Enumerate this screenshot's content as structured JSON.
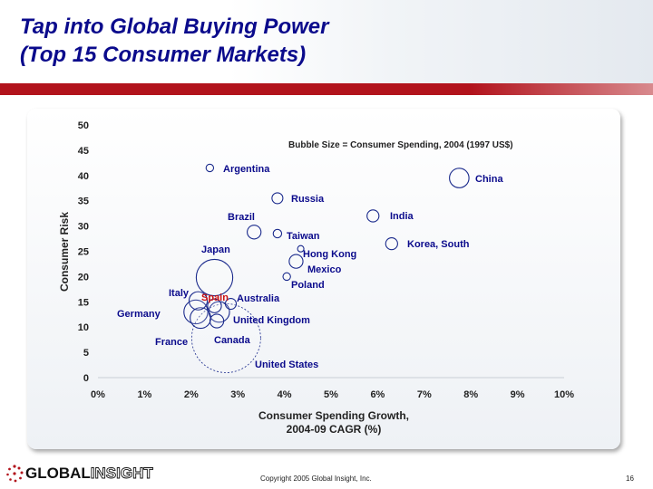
{
  "title_lines": [
    "Tap into Global Buying Power",
    "(Top 15 Consumer Markets)"
  ],
  "footer": {
    "logo_part1": "GLOBAL",
    "logo_part2": "INSIGHT",
    "copyright": "Copyright 2005 Global Insight, Inc.",
    "page_number": "16"
  },
  "colors": {
    "title": "#0b0b8c",
    "bar": "#b2131c",
    "bubble": "#1a2a8c",
    "spain_label": "#cc1111"
  },
  "chart_data": {
    "type": "scatter",
    "title": "Bubble Size = Consumer Spending, 2004 (1997 US$)",
    "xlabel_lines": [
      "Consumer Spending Growth,",
      "2004-09 CAGR (%)"
    ],
    "ylabel": "Consumer Risk",
    "xlim": [
      0,
      10
    ],
    "ylim": [
      0,
      50
    ],
    "x_ticks": [
      0,
      1,
      2,
      3,
      4,
      5,
      6,
      7,
      8,
      9,
      10
    ],
    "x_tick_labels": [
      "0%",
      "1%",
      "2%",
      "3%",
      "4%",
      "5%",
      "6%",
      "7%",
      "8%",
      "9%",
      "10%"
    ],
    "y_ticks": [
      0,
      5,
      10,
      15,
      20,
      25,
      30,
      35,
      40,
      45,
      50
    ],
    "y_tick_labels": [
      "0",
      "5",
      "10",
      "15",
      "20",
      "25",
      "30",
      "35",
      "40",
      "45",
      "50"
    ],
    "size_unit": "relative consumer spending",
    "points": [
      {
        "label": "United States",
        "x": 2.75,
        "y": 7.8,
        "size": 100
      },
      {
        "label": "Japan",
        "x": 2.5,
        "y": 19.8,
        "size": 28
      },
      {
        "label": "Germany",
        "x": 2.1,
        "y": 13.0,
        "size": 12
      },
      {
        "label": "United Kingdom",
        "x": 2.6,
        "y": 13.0,
        "size": 9
      },
      {
        "label": "France",
        "x": 2.2,
        "y": 11.8,
        "size": 9
      },
      {
        "label": "Italy",
        "x": 2.15,
        "y": 15.2,
        "size": 7
      },
      {
        "label": "China",
        "x": 7.75,
        "y": 39.5,
        "size": 8
      },
      {
        "label": "Brazil",
        "x": 3.35,
        "y": 28.8,
        "size": 4
      },
      {
        "label": "Canada",
        "x": 2.55,
        "y": 11.2,
        "size": 4
      },
      {
        "label": "Spain",
        "x": 2.5,
        "y": 14.2,
        "size": 4
      },
      {
        "label": "Mexico",
        "x": 4.25,
        "y": 23.0,
        "size": 4
      },
      {
        "label": "Korea, South",
        "x": 6.3,
        "y": 26.5,
        "size": 3
      },
      {
        "label": "India",
        "x": 5.9,
        "y": 32.0,
        "size": 3
      },
      {
        "label": "Russia",
        "x": 3.85,
        "y": 35.5,
        "size": 2.5
      },
      {
        "label": "Australia",
        "x": 2.85,
        "y": 14.6,
        "size": 2.5
      },
      {
        "label": "Taiwan",
        "x": 3.85,
        "y": 28.5,
        "size": 1.5
      },
      {
        "label": "Argentina",
        "x": 2.4,
        "y": 41.5,
        "size": 1.2
      },
      {
        "label": "Hong Kong",
        "x": 4.35,
        "y": 25.5,
        "size": 0.8
      },
      {
        "label": "Poland",
        "x": 4.05,
        "y": 20.0,
        "size": 1.2
      }
    ],
    "grid": false,
    "legend": "none"
  }
}
